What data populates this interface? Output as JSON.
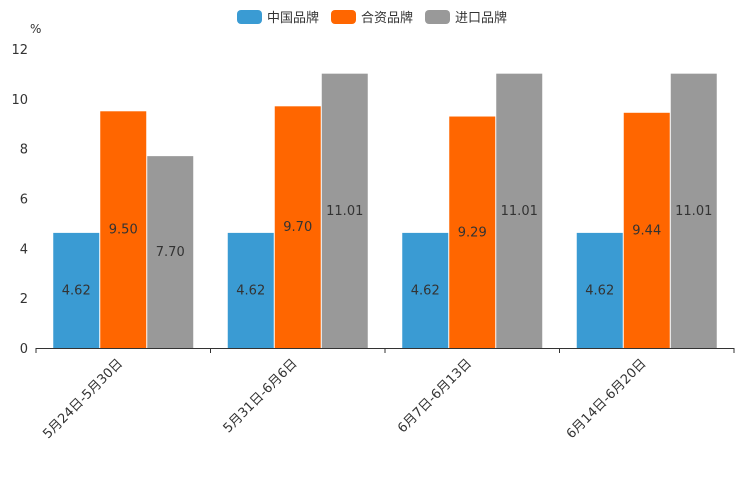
{
  "chart_data": {
    "type": "bar",
    "unit": "%",
    "categories": [
      "5月24日-5月30日",
      "5月31日-6月6日",
      "6月7日-6月13日",
      "6月14日-6月20日"
    ],
    "series": [
      {
        "name": "中国品牌",
        "color": "#3a9bd3",
        "values": [
          4.62,
          4.62,
          4.62,
          4.62
        ]
      },
      {
        "name": "合资品牌",
        "color": "#ff6600",
        "values": [
          9.5,
          9.7,
          9.29,
          9.44
        ]
      },
      {
        "name": "进口品牌",
        "color": "#999999",
        "values": [
          7.7,
          11.01,
          11.01,
          11.01
        ]
      }
    ],
    "ylim": [
      0,
      12
    ],
    "yticks": [
      0,
      2,
      4,
      6,
      8,
      10,
      12
    ],
    "legend_position": "top-center"
  }
}
